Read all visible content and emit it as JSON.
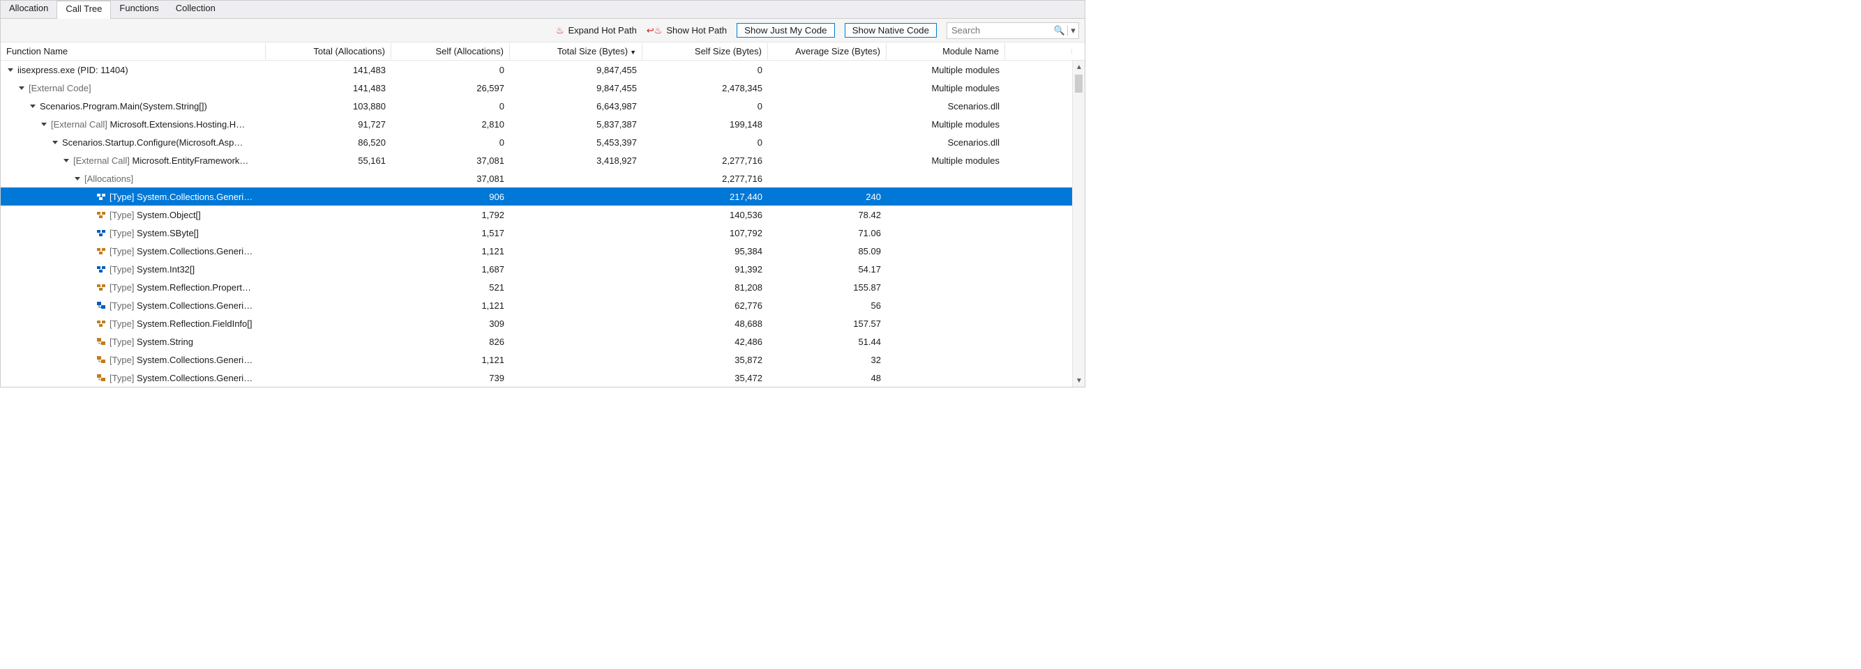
{
  "tabs": {
    "items": [
      "Allocation",
      "Call Tree",
      "Functions",
      "Collection"
    ],
    "active_index": 1
  },
  "toolbar": {
    "expand_hot_path": "Expand Hot Path",
    "show_hot_path": "Show Hot Path",
    "show_just_my_code": "Show Just My Code",
    "show_native_code": "Show Native Code",
    "search_placeholder": "Search"
  },
  "columns": {
    "function_name": "Function Name",
    "total_alloc": "Total (Allocations)",
    "self_alloc": "Self (Allocations)",
    "total_size": "Total Size (Bytes)",
    "self_size": "Self Size (Bytes)",
    "avg_size": "Average Size (Bytes)",
    "module": "Module Name",
    "sort_indicator": "▼"
  },
  "colors": {
    "selection_bg": "#0078d7",
    "selection_fg": "#ffffff",
    "external_fg": "#6a6a6a",
    "button_border": "#007acc",
    "grid_border": "#e5e5e5",
    "window_border": "#cccccc",
    "flame": "#d01f1f"
  },
  "rows": [
    {
      "indent": 0,
      "expander": "open",
      "icon": "none",
      "label": "iisexpress.exe (PID: 11404)",
      "total_alloc": "141,483",
      "self_alloc": "0",
      "total_size": "9,847,455",
      "self_size": "0",
      "avg_size": "",
      "module": "Multiple modules",
      "selected": false
    },
    {
      "indent": 1,
      "expander": "open",
      "icon": "none",
      "label": "[External Code]",
      "label_class": "external",
      "total_alloc": "141,483",
      "self_alloc": "26,597",
      "total_size": "9,847,455",
      "self_size": "2,478,345",
      "avg_size": "",
      "module": "Multiple modules",
      "selected": false
    },
    {
      "indent": 2,
      "expander": "open",
      "icon": "none",
      "label": "Scenarios.Program.Main(System.String[])",
      "total_alloc": "103,880",
      "self_alloc": "0",
      "total_size": "6,643,987",
      "self_size": "0",
      "avg_size": "",
      "module": "Scenarios.dll",
      "selected": false
    },
    {
      "indent": 3,
      "expander": "open",
      "icon": "none",
      "prefix": "[External Call] ",
      "prefix_class": "external",
      "label": "Microsoft.Extensions.Hosting.H…",
      "total_alloc": "91,727",
      "self_alloc": "2,810",
      "total_size": "5,837,387",
      "self_size": "199,148",
      "avg_size": "",
      "module": "Multiple modules",
      "selected": false
    },
    {
      "indent": 4,
      "expander": "open",
      "icon": "none",
      "label": "Scenarios.Startup.Configure(Microsoft.Asp…",
      "total_alloc": "86,520",
      "self_alloc": "0",
      "total_size": "5,453,397",
      "self_size": "0",
      "avg_size": "",
      "module": "Scenarios.dll",
      "selected": false
    },
    {
      "indent": 5,
      "expander": "open",
      "icon": "none",
      "prefix": "[External Call] ",
      "prefix_class": "external",
      "label": "Microsoft.EntityFramework…",
      "total_alloc": "55,161",
      "self_alloc": "37,081",
      "total_size": "3,418,927",
      "self_size": "2,277,716",
      "avg_size": "",
      "module": "Multiple modules",
      "selected": false
    },
    {
      "indent": 6,
      "expander": "open",
      "icon": "none",
      "label": "[Allocations]",
      "label_class": "external",
      "total_alloc": "",
      "self_alloc": "37,081",
      "total_size": "",
      "self_size": "2,277,716",
      "avg_size": "",
      "module": "",
      "selected": false
    },
    {
      "indent": 7,
      "expander": "none",
      "icon": "struct-blue",
      "prefix": "[Type] ",
      "label": "System.Collections.Generi…",
      "total_alloc": "",
      "self_alloc": "906",
      "total_size": "",
      "self_size": "217,440",
      "avg_size": "240",
      "module": "",
      "selected": true
    },
    {
      "indent": 7,
      "expander": "none",
      "icon": "struct-gold",
      "prefix": "[Type] ",
      "prefix_class": "external",
      "label": "System.Object[]",
      "total_alloc": "",
      "self_alloc": "1,792",
      "total_size": "",
      "self_size": "140,536",
      "avg_size": "78.42",
      "module": "",
      "selected": false
    },
    {
      "indent": 7,
      "expander": "none",
      "icon": "struct-blue",
      "prefix": "[Type] ",
      "prefix_class": "external",
      "label": "System.SByte[]",
      "total_alloc": "",
      "self_alloc": "1,517",
      "total_size": "",
      "self_size": "107,792",
      "avg_size": "71.06",
      "module": "",
      "selected": false
    },
    {
      "indent": 7,
      "expander": "none",
      "icon": "struct-gold",
      "prefix": "[Type] ",
      "prefix_class": "external",
      "label": "System.Collections.Generi…",
      "total_alloc": "",
      "self_alloc": "1,121",
      "total_size": "",
      "self_size": "95,384",
      "avg_size": "85.09",
      "module": "",
      "selected": false
    },
    {
      "indent": 7,
      "expander": "none",
      "icon": "struct-blue",
      "prefix": "[Type] ",
      "prefix_class": "external",
      "label": "System.Int32[]",
      "total_alloc": "",
      "self_alloc": "1,687",
      "total_size": "",
      "self_size": "91,392",
      "avg_size": "54.17",
      "module": "",
      "selected": false
    },
    {
      "indent": 7,
      "expander": "none",
      "icon": "struct-gold",
      "prefix": "[Type] ",
      "prefix_class": "external",
      "label": "System.Reflection.Propert…",
      "total_alloc": "",
      "self_alloc": "521",
      "total_size": "",
      "self_size": "81,208",
      "avg_size": "155.87",
      "module": "",
      "selected": false
    },
    {
      "indent": 7,
      "expander": "none",
      "icon": "class-blue",
      "prefix": "[Type] ",
      "prefix_class": "external",
      "label": "System.Collections.Generi…",
      "total_alloc": "",
      "self_alloc": "1,121",
      "total_size": "",
      "self_size": "62,776",
      "avg_size": "56",
      "module": "",
      "selected": false
    },
    {
      "indent": 7,
      "expander": "none",
      "icon": "struct-gold",
      "prefix": "[Type] ",
      "prefix_class": "external",
      "label": "System.Reflection.FieldInfo[]",
      "total_alloc": "",
      "self_alloc": "309",
      "total_size": "",
      "self_size": "48,688",
      "avg_size": "157.57",
      "module": "",
      "selected": false
    },
    {
      "indent": 7,
      "expander": "none",
      "icon": "class-gold",
      "prefix": "[Type] ",
      "prefix_class": "external",
      "label": "System.String",
      "total_alloc": "",
      "self_alloc": "826",
      "total_size": "",
      "self_size": "42,486",
      "avg_size": "51.44",
      "module": "",
      "selected": false
    },
    {
      "indent": 7,
      "expander": "none",
      "icon": "class-gold",
      "prefix": "[Type] ",
      "prefix_class": "external",
      "label": "System.Collections.Generi…",
      "total_alloc": "",
      "self_alloc": "1,121",
      "total_size": "",
      "self_size": "35,872",
      "avg_size": "32",
      "module": "",
      "selected": false
    },
    {
      "indent": 7,
      "expander": "none",
      "icon": "class-gold",
      "prefix": "[Type] ",
      "prefix_class": "external",
      "label": "System.Collections.Generi…",
      "total_alloc": "",
      "self_alloc": "739",
      "total_size": "",
      "self_size": "35,472",
      "avg_size": "48",
      "module": "",
      "selected": false
    }
  ]
}
